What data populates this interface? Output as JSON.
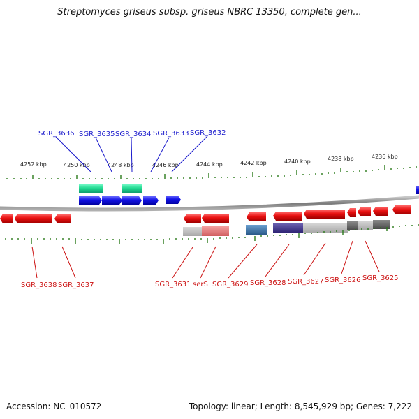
{
  "title": "Streptomyces griseus subsp. griseus NBRC 13350, complete gen...",
  "footer": {
    "accession": "Accession: NC_010572",
    "summary": "Topology: linear; Length: 8,545,929 bp; Genes: 7,222"
  },
  "colors": {
    "forward_gene": "#1010e0",
    "reverse_gene": "#e01010",
    "rrna_like": "#20d090",
    "backbone": "#8a8a8a",
    "ticks": "#2a7a1a"
  },
  "scale_labels": [
    "4252 kbp",
    "4250 kbp",
    "4248 kbp",
    "4246 kbp",
    "4244 kbp",
    "4242 kbp",
    "4240 kbp",
    "4238 kbp",
    "4236 kbp"
  ],
  "genes_top": [
    "SGR_3636",
    "SGR_3635",
    "SGR_3634",
    "SGR_3633",
    "SGR_3632"
  ],
  "genes_bottom": [
    "SGR_3638",
    "SGR_3637",
    "SGR_3631",
    "serS",
    "SGR_3629",
    "SGR_3628",
    "SGR_3627",
    "SGR_3626",
    "SGR_3625"
  ]
}
